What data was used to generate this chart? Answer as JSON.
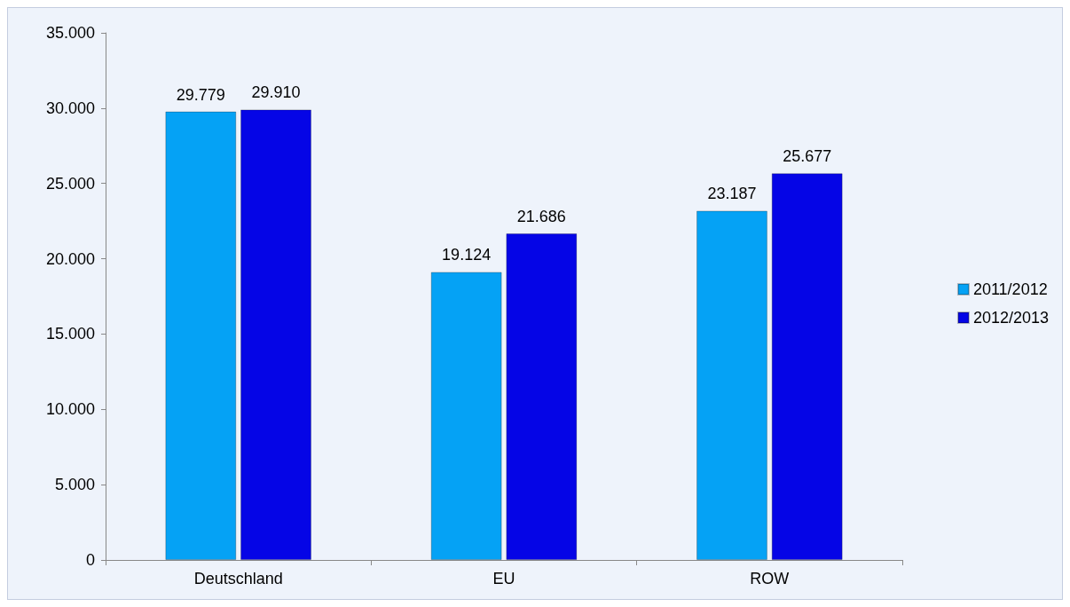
{
  "chart_data": {
    "type": "bar",
    "categories": [
      "Deutschland",
      "EU",
      "ROW"
    ],
    "series": [
      {
        "name": "2011/2012",
        "color": "#05a2f5",
        "values": [
          29779,
          19124,
          23187
        ],
        "value_labels": [
          "29.779",
          "19.124",
          "23.187"
        ]
      },
      {
        "name": "2012/2013",
        "color": "#0505e6",
        "values": [
          29910,
          21686,
          25677
        ],
        "value_labels": [
          "29.910",
          "21.686",
          "25.677"
        ]
      }
    ],
    "ylim": [
      0,
      35000
    ],
    "yticks": [
      0,
      {
        "value": 5000,
        "label": "5.000"
      },
      {
        "value": 10000,
        "label": "10.000"
      },
      {
        "value": 15000,
        "label": "15.000"
      },
      {
        "value": 20000,
        "label": "20.000"
      },
      {
        "value": 25000,
        "label": "25.000"
      },
      {
        "value": 30000,
        "label": "30.000"
      },
      {
        "value": 35000,
        "label": "35.000"
      }
    ],
    "grid": false,
    "legend": "right"
  }
}
